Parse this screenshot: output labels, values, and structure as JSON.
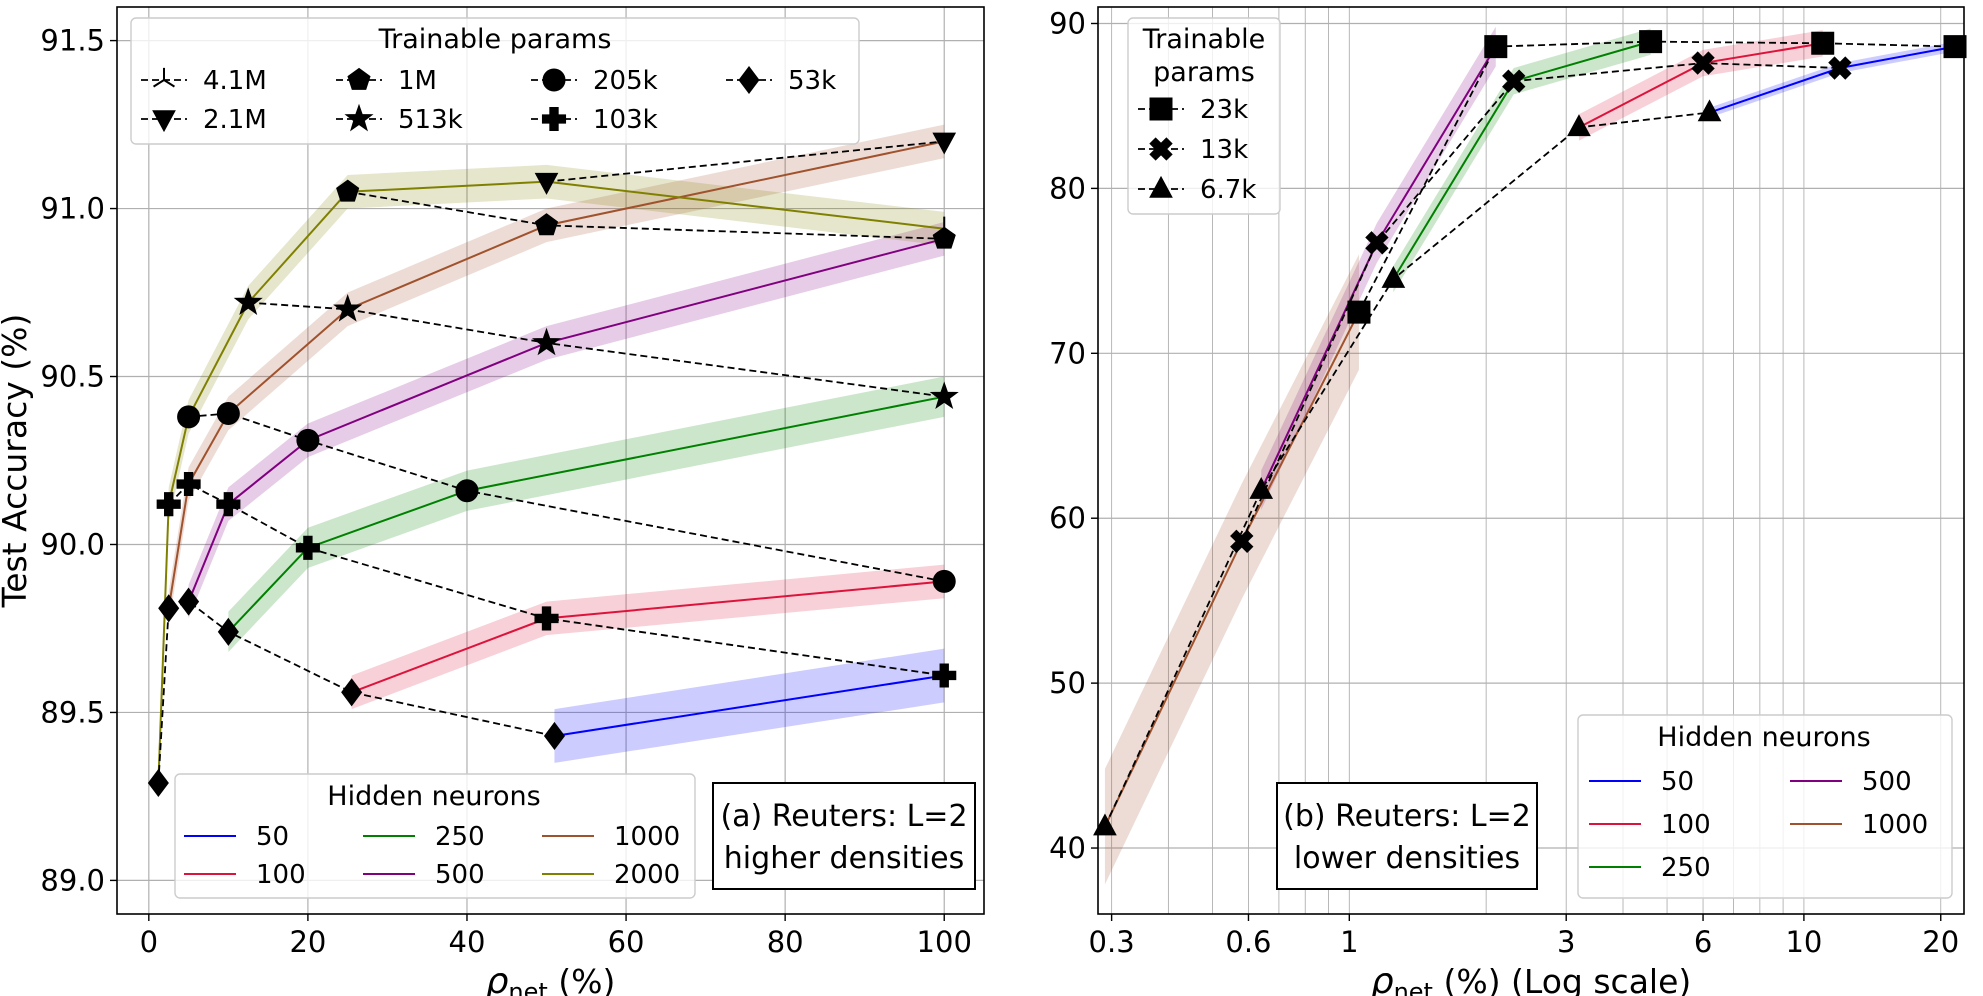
{
  "chart_data": [
    {
      "type": "line",
      "title": "",
      "annotation": [
        "(a) Reuters: L=2",
        "higher densities"
      ],
      "xlabel": "ρnet (%)",
      "ylabel": "Test Accuracy (%)",
      "xlim": [
        -4,
        105
      ],
      "ylim": [
        88.9,
        91.6
      ],
      "xticks": [
        0,
        20,
        40,
        60,
        80,
        100
      ],
      "yticks": [
        89.0,
        89.5,
        90.0,
        90.5,
        91.0,
        91.5
      ],
      "grid": true,
      "legends": {
        "trainable": {
          "title": "Trainable params",
          "position": "top-left",
          "entries": [
            {
              "label": "4.1M",
              "marker": "tri"
            },
            {
              "label": "2.1M",
              "marker": "tri_down"
            },
            {
              "label": "1M",
              "marker": "pentagon"
            },
            {
              "label": "513k",
              "marker": "star"
            },
            {
              "label": "205k",
              "marker": "circle"
            },
            {
              "label": "103k",
              "marker": "plus"
            },
            {
              "label": "53k",
              "marker": "diamond"
            }
          ]
        },
        "hidden": {
          "title": "Hidden neurons",
          "position": "lower-center",
          "entries": [
            {
              "label": "50",
              "color": "#0000ff"
            },
            {
              "label": "100",
              "color": "#dc143c"
            },
            {
              "label": "250",
              "color": "#008000"
            },
            {
              "label": "500",
              "color": "#800080"
            },
            {
              "label": "1000",
              "color": "#a0522d"
            },
            {
              "label": "2000",
              "color": "#808000"
            }
          ]
        }
      },
      "neuron_series": [
        {
          "name": "50",
          "color": "#0000ff",
          "band": 0.08,
          "points": [
            [
              51,
              89.43
            ],
            [
              100,
              89.61
            ]
          ]
        },
        {
          "name": "100",
          "color": "#dc143c",
          "band": 0.05,
          "points": [
            [
              25.5,
              89.56
            ],
            [
              50,
              89.78
            ],
            [
              100,
              89.89
            ]
          ]
        },
        {
          "name": "250",
          "color": "#008000",
          "band": 0.06,
          "points": [
            [
              10,
              89.74
            ],
            [
              20,
              89.99
            ],
            [
              40,
              90.16
            ],
            [
              100,
              90.44
            ]
          ]
        },
        {
          "name": "500",
          "color": "#800080",
          "band": 0.05,
          "points": [
            [
              5,
              89.83
            ],
            [
              10,
              90.12
            ],
            [
              20,
              90.31
            ],
            [
              50,
              90.6
            ],
            [
              100,
              90.91
            ]
          ]
        },
        {
          "name": "1000",
          "color": "#a0522d",
          "band": 0.05,
          "points": [
            [
              2.5,
              89.81
            ],
            [
              5,
              90.18
            ],
            [
              10,
              90.39
            ],
            [
              25,
              90.7
            ],
            [
              50,
              90.95
            ],
            [
              100,
              91.2
            ]
          ]
        },
        {
          "name": "2000",
          "color": "#808000",
          "band": 0.05,
          "points": [
            [
              1.2,
              89.29
            ],
            [
              2.5,
              90.12
            ],
            [
              5,
              90.38
            ],
            [
              12.5,
              90.72
            ],
            [
              25,
              91.05
            ],
            [
              50,
              91.08
            ],
            [
              100,
              90.94
            ]
          ]
        }
      ],
      "param_series": [
        {
          "name": "4.1M",
          "marker": "tri",
          "points": [
            [
              100,
              90.94
            ]
          ]
        },
        {
          "name": "2.1M",
          "marker": "tri_down",
          "points": [
            [
              50,
              91.08
            ],
            [
              100,
              91.2
            ]
          ]
        },
        {
          "name": "1M",
          "marker": "pentagon",
          "points": [
            [
              25,
              91.05
            ],
            [
              50,
              90.95
            ],
            [
              100,
              90.91
            ]
          ]
        },
        {
          "name": "513k",
          "marker": "star",
          "points": [
            [
              12.5,
              90.72
            ],
            [
              25,
              90.7
            ],
            [
              50,
              90.6
            ],
            [
              100,
              90.44
            ]
          ]
        },
        {
          "name": "205k",
          "marker": "circle",
          "points": [
            [
              5,
              90.38
            ],
            [
              10,
              90.39
            ],
            [
              20,
              90.31
            ],
            [
              40,
              90.16
            ],
            [
              100,
              89.89
            ]
          ]
        },
        {
          "name": "103k",
          "marker": "plus",
          "points": [
            [
              2.5,
              90.12
            ],
            [
              5,
              90.18
            ],
            [
              10,
              90.12
            ],
            [
              20,
              89.99
            ],
            [
              50,
              89.78
            ],
            [
              100,
              89.61
            ]
          ]
        },
        {
          "name": "53k",
          "marker": "diamond",
          "points": [
            [
              1.2,
              89.29
            ],
            [
              2.5,
              89.81
            ],
            [
              5,
              89.83
            ],
            [
              10,
              89.74
            ],
            [
              25.5,
              89.56
            ],
            [
              51,
              89.43
            ]
          ]
        }
      ]
    },
    {
      "type": "line",
      "title": "",
      "annotation": [
        "(b) Reuters: L=2",
        "lower densities"
      ],
      "xlabel": "ρnet (%) (Log scale)",
      "ylabel": "",
      "xscale": "log",
      "xlim": [
        0.28,
        22.5
      ],
      "ylim": [
        36,
        91
      ],
      "xticks": [
        0.3,
        0.6,
        1,
        3,
        6,
        10,
        20
      ],
      "xtick_labels": [
        "0.3",
        "0.6",
        "1",
        "3",
        "6",
        "10",
        "20"
      ],
      "yticks": [
        40,
        50,
        60,
        70,
        80,
        90
      ],
      "grid": true,
      "legends": {
        "trainable": {
          "title": [
            "Trainable",
            "params"
          ],
          "position": "top-left",
          "entries": [
            {
              "label": "23k",
              "marker": "square"
            },
            {
              "label": "13k",
              "marker": "x"
            },
            {
              "label": "6.7k",
              "marker": "tri"
            }
          ]
        },
        "hidden": {
          "title": "Hidden neurons",
          "position": "lower-right",
          "entries": [
            {
              "label": "50",
              "color": "#0000ff"
            },
            {
              "label": "100",
              "color": "#dc143c"
            },
            {
              "label": "250",
              "color": "#008000"
            },
            {
              "label": "500",
              "color": "#800080"
            },
            {
              "label": "1000",
              "color": "#a0522d"
            }
          ]
        }
      },
      "neuron_series": [
        {
          "name": "50",
          "color": "#0000ff",
          "band": 0.3,
          "points": [
            [
              6.2,
              84.6
            ],
            [
              12,
              87.3
            ],
            [
              21.5,
              88.6
            ]
          ]
        },
        {
          "name": "100",
          "color": "#dc143c",
          "band": 0.8,
          "points": [
            [
              3.2,
              83.7
            ],
            [
              6,
              87.6
            ],
            [
              11,
              88.8
            ]
          ]
        },
        {
          "name": "250",
          "color": "#008000",
          "band": 0.8,
          "points": [
            [
              1.25,
              74.5
            ],
            [
              2.3,
              86.5
            ],
            [
              4.6,
              88.9
            ]
          ]
        },
        {
          "name": "500",
          "color": "#800080",
          "band": 1.2,
          "points": [
            [
              0.64,
              61.7
            ],
            [
              1.15,
              76.7
            ],
            [
              2.1,
              88.6
            ]
          ]
        },
        {
          "name": "1000",
          "color": "#a0522d",
          "band": 3.5,
          "points": [
            [
              0.29,
              41.3
            ],
            [
              0.58,
              58.6
            ],
            [
              1.05,
              72.5
            ]
          ]
        }
      ],
      "param_series": [
        {
          "name": "23k",
          "marker": "square",
          "points": [
            [
              1.05,
              72.5
            ],
            [
              2.1,
              88.6
            ],
            [
              4.6,
              88.9
            ],
            [
              11,
              88.8
            ],
            [
              21.5,
              88.6
            ]
          ]
        },
        {
          "name": "13k",
          "marker": "x",
          "points": [
            [
              0.58,
              58.6
            ],
            [
              1.15,
              76.7
            ],
            [
              2.3,
              86.5
            ],
            [
              6,
              87.6
            ],
            [
              12,
              87.3
            ]
          ]
        },
        {
          "name": "6.7k",
          "marker": "tri",
          "points": [
            [
              0.29,
              41.3
            ],
            [
              0.64,
              61.7
            ],
            [
              1.25,
              74.5
            ],
            [
              3.2,
              83.7
            ],
            [
              6.2,
              84.6
            ]
          ]
        }
      ]
    }
  ]
}
